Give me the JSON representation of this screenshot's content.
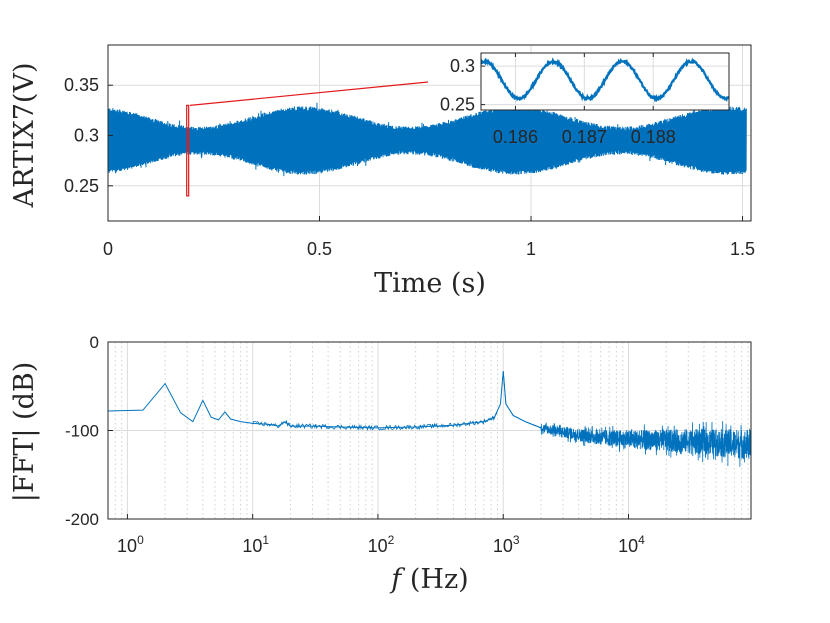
{
  "chart_data": [
    {
      "type": "line",
      "title": "",
      "xlabel": "Time (s)",
      "ylabel": "ARTIX7(V)",
      "xlim": [
        0,
        1.52
      ],
      "ylim": [
        0.215,
        0.39
      ],
      "xticks": [
        0,
        0.5,
        1,
        1.5
      ],
      "xtick_labels": [
        "0",
        "0.5",
        "1",
        "1.5"
      ],
      "yticks": [
        0.25,
        0.3,
        0.35
      ],
      "ytick_labels": [
        "0.25",
        "0.3",
        "0.35"
      ],
      "grid": true,
      "series_color": "#0072BD",
      "signal": {
        "description": "1 kHz sine sampled at 100 kHz, amplitude modulated at 2 Hz",
        "center": 0.295,
        "envelope_max_amplitude": 0.032,
        "envelope_min_amplitude": 0.012,
        "modulation_frequency_hz": 2,
        "carrier_frequency_hz": 1000
      },
      "zoom_marker": {
        "x_range": [
          0.186,
          0.189
        ],
        "y_range": [
          0.24,
          0.33
        ],
        "color": "#e31a1c"
      },
      "inset": {
        "xlim": [
          0.1855,
          0.1891
        ],
        "ylim": [
          0.243,
          0.317
        ],
        "xticks": [
          0.186,
          0.187,
          0.188
        ],
        "xtick_labels": [
          "0.186",
          "0.187",
          "0.188"
        ],
        "yticks": [
          0.25,
          0.3
        ],
        "ytick_labels": [
          "0.25",
          "0.3"
        ],
        "center": 0.282,
        "amplitude": 0.024,
        "period_s": 0.001
      }
    },
    {
      "type": "line",
      "xscale": "log",
      "xlabel_italic": "f",
      "xlabel_rest": " (Hz)",
      "ylabel": "|FFT| (dB)",
      "xlim": [
        0.7,
        95000
      ],
      "ylim": [
        -200,
        0
      ],
      "xticks": [
        1,
        10,
        100,
        1000,
        10000
      ],
      "xtick_labels": [
        {
          "base": "10",
          "exp": "0"
        },
        {
          "base": "10",
          "exp": "1"
        },
        {
          "base": "10",
          "exp": "2"
        },
        {
          "base": "10",
          "exp": "3"
        },
        {
          "base": "10",
          "exp": "4"
        }
      ],
      "yticks": [
        0,
        -100,
        -200
      ],
      "ytick_labels": [
        "0",
        "-100",
        "-200"
      ],
      "grid": true,
      "series_color": "#0072BD",
      "points": [
        [
          0.7,
          -78
        ],
        [
          1.33,
          -77
        ],
        [
          2,
          -47
        ],
        [
          2.66,
          -80
        ],
        [
          3.33,
          -90
        ],
        [
          4,
          -66
        ],
        [
          4.66,
          -85
        ],
        [
          5.33,
          -88
        ],
        [
          6,
          -79
        ],
        [
          6.66,
          -87
        ],
        [
          8,
          -90
        ],
        [
          10,
          -92
        ],
        [
          13.3,
          -93
        ],
        [
          16,
          -95
        ],
        [
          18,
          -90
        ],
        [
          20,
          -95
        ],
        [
          30,
          -95
        ],
        [
          50,
          -96
        ],
        [
          100,
          -97
        ],
        [
          200,
          -96
        ],
        [
          400,
          -94
        ],
        [
          700,
          -90
        ],
        [
          850,
          -85
        ],
        [
          950,
          -70
        ],
        [
          1000,
          -33
        ],
        [
          1050,
          -70
        ],
        [
          1200,
          -83
        ],
        [
          1500,
          -90
        ],
        [
          2000,
          -97
        ],
        [
          3000,
          -102
        ],
        [
          5000,
          -107
        ],
        [
          10000,
          -110
        ],
        [
          30000,
          -112
        ],
        [
          95000,
          -116
        ]
      ],
      "noise": {
        "start_hz": 2000,
        "spread_db_low": 10,
        "spread_db_high": 35
      }
    }
  ]
}
